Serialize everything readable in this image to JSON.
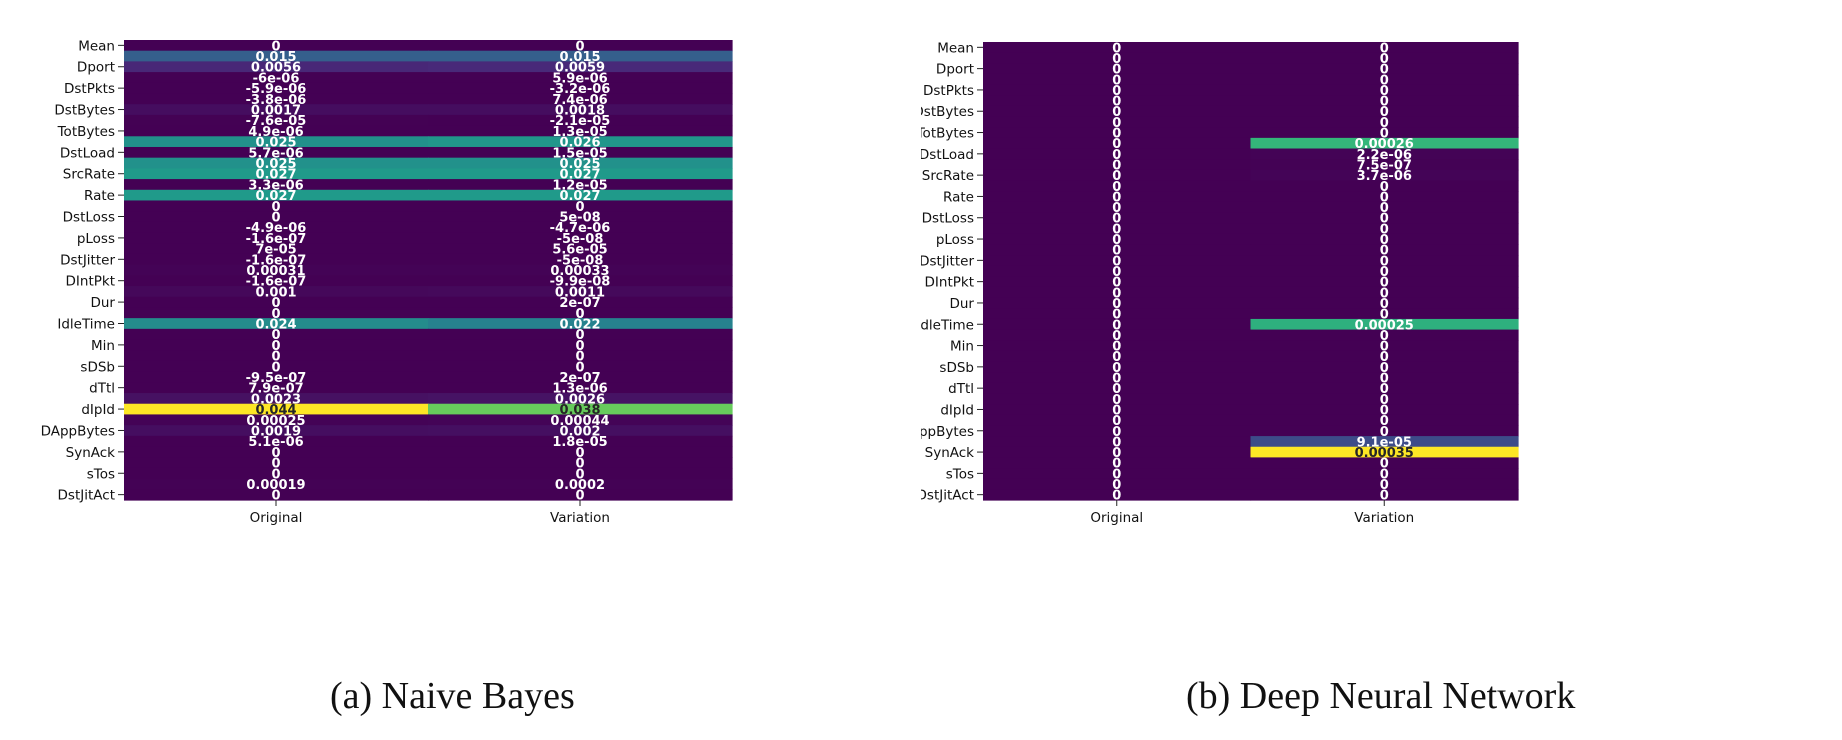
{
  "captions": [
    "(a)  Naive  Bayes",
    "(b)  Deep  Neural  Network"
  ],
  "palette": {
    "purple": "#440154",
    "blue": "#3b528b",
    "teal": "#21918c",
    "green": "#5ec962",
    "lime": "#b5de2b",
    "yellow": "#fde725"
  },
  "chart_data": [
    {
      "type": "heatmap",
      "title": "",
      "caption": "(a)  Naive  Bayes",
      "xlabel": "",
      "ylabel": "",
      "columns": [
        "Original",
        "Variation"
      ],
      "row_tick_labels": [
        "Mean",
        "Dport",
        "DstPkts",
        "DstBytes",
        "TotBytes",
        "DstLoad",
        "SrcRate",
        "Rate",
        "DstLoss",
        "pLoss",
        "DstJitter",
        "DIntPkt",
        "Dur",
        "IdleTime",
        "Min",
        "sDSb",
        "dTtl",
        "dIpId",
        "DAppBytes",
        "SynAck",
        "sTos",
        "DstJitAct"
      ],
      "row_count": 43,
      "vmin": 0,
      "vmax": 0.044,
      "colormap": "viridis",
      "values": [
        [
          "0",
          "0"
        ],
        [
          "0.015",
          "0.015"
        ],
        [
          "0.0056",
          "0.0059"
        ],
        [
          "-6e-06",
          "5.9e-06"
        ],
        [
          "-5.9e-06",
          "-3.2e-06"
        ],
        [
          "-3.8e-06",
          "7.4e-06"
        ],
        [
          "0.0017",
          "0.0018"
        ],
        [
          "-7.6e-05",
          "-2.1e-05"
        ],
        [
          "4.9e-06",
          "1.3e-05"
        ],
        [
          "0.025",
          "0.026"
        ],
        [
          "5.7e-06",
          "1.5e-05"
        ],
        [
          "0.025",
          "0.025"
        ],
        [
          "0.027",
          "0.027"
        ],
        [
          "3.3e-06",
          "1.2e-05"
        ],
        [
          "0.027",
          "0.027"
        ],
        [
          "0",
          "0"
        ],
        [
          "0",
          "5e-08"
        ],
        [
          "-4.9e-06",
          "-4.7e-06"
        ],
        [
          "-1.6e-07",
          "-5e-08"
        ],
        [
          "7e-05",
          "5.6e-05"
        ],
        [
          "-1.6e-07",
          "-5e-08"
        ],
        [
          "0.00031",
          "0.00033"
        ],
        [
          "-1.6e-07",
          "-9.9e-08"
        ],
        [
          "0.001",
          "0.0011"
        ],
        [
          "0",
          "2e-07"
        ],
        [
          "0",
          "0"
        ],
        [
          "0.024",
          "0.022"
        ],
        [
          "0",
          "0"
        ],
        [
          "0",
          "0"
        ],
        [
          "0",
          "0"
        ],
        [
          "0",
          "0"
        ],
        [
          "-9.5e-07",
          "2e-07"
        ],
        [
          "7.9e-07",
          "1.3e-06"
        ],
        [
          "0.0023",
          "0.0026"
        ],
        [
          "0.044",
          "0.038"
        ],
        [
          "0.00025",
          "0.00044"
        ],
        [
          "0.0019",
          "0.002"
        ],
        [
          "5.1e-06",
          "1.8e-05"
        ],
        [
          "0",
          "0"
        ],
        [
          "0",
          "0"
        ],
        [
          "0",
          "0"
        ],
        [
          "0.00019",
          "0.0002"
        ],
        [
          "0",
          "0"
        ]
      ]
    },
    {
      "type": "heatmap",
      "title": "",
      "caption": "(b)  Deep  Neural  Network",
      "xlabel": "",
      "ylabel": "",
      "columns": [
        "Original",
        "Variation"
      ],
      "row_tick_labels": [
        "Mean",
        "Dport",
        "DstPkts",
        "DstBytes",
        "TotBytes",
        "DstLoad",
        "SrcRate",
        "Rate",
        "DstLoss",
        "pLoss",
        "DstJitter",
        "DIntPkt",
        "Dur",
        "IdleTime",
        "Min",
        "sDSb",
        "dTtl",
        "dIpId",
        "DAppBytes",
        "SynAck",
        "sTos",
        "DstJitAct"
      ],
      "row_count": 43,
      "vmin": 0,
      "vmax": 0.00035,
      "colormap": "viridis",
      "values": [
        [
          "0",
          "0"
        ],
        [
          "0",
          "0"
        ],
        [
          "0",
          "0"
        ],
        [
          "0",
          "0"
        ],
        [
          "0",
          "0"
        ],
        [
          "0",
          "0"
        ],
        [
          "0",
          "0"
        ],
        [
          "0",
          "0"
        ],
        [
          "0",
          "0"
        ],
        [
          "0",
          "0.00026"
        ],
        [
          "0",
          "2.2e-06"
        ],
        [
          "0",
          "7.5e-07"
        ],
        [
          "0",
          "3.7e-06"
        ],
        [
          "0",
          "0"
        ],
        [
          "0",
          "0"
        ],
        [
          "0",
          "0"
        ],
        [
          "0",
          "0"
        ],
        [
          "0",
          "0"
        ],
        [
          "0",
          "0"
        ],
        [
          "0",
          "0"
        ],
        [
          "0",
          "0"
        ],
        [
          "0",
          "0"
        ],
        [
          "0",
          "0"
        ],
        [
          "0",
          "0"
        ],
        [
          "0",
          "0"
        ],
        [
          "0",
          "0"
        ],
        [
          "0",
          "0.00025"
        ],
        [
          "0",
          "0"
        ],
        [
          "0",
          "0"
        ],
        [
          "0",
          "0"
        ],
        [
          "0",
          "0"
        ],
        [
          "0",
          "0"
        ],
        [
          "0",
          "0"
        ],
        [
          "0",
          "0"
        ],
        [
          "0",
          "0"
        ],
        [
          "0",
          "0"
        ],
        [
          "0",
          "0"
        ],
        [
          "0",
          "9.1e-05"
        ],
        [
          "0",
          "0.00035"
        ],
        [
          "0",
          "0"
        ],
        [
          "0",
          "0"
        ],
        [
          "0",
          "0"
        ],
        [
          "0",
          "0"
        ]
      ]
    }
  ]
}
